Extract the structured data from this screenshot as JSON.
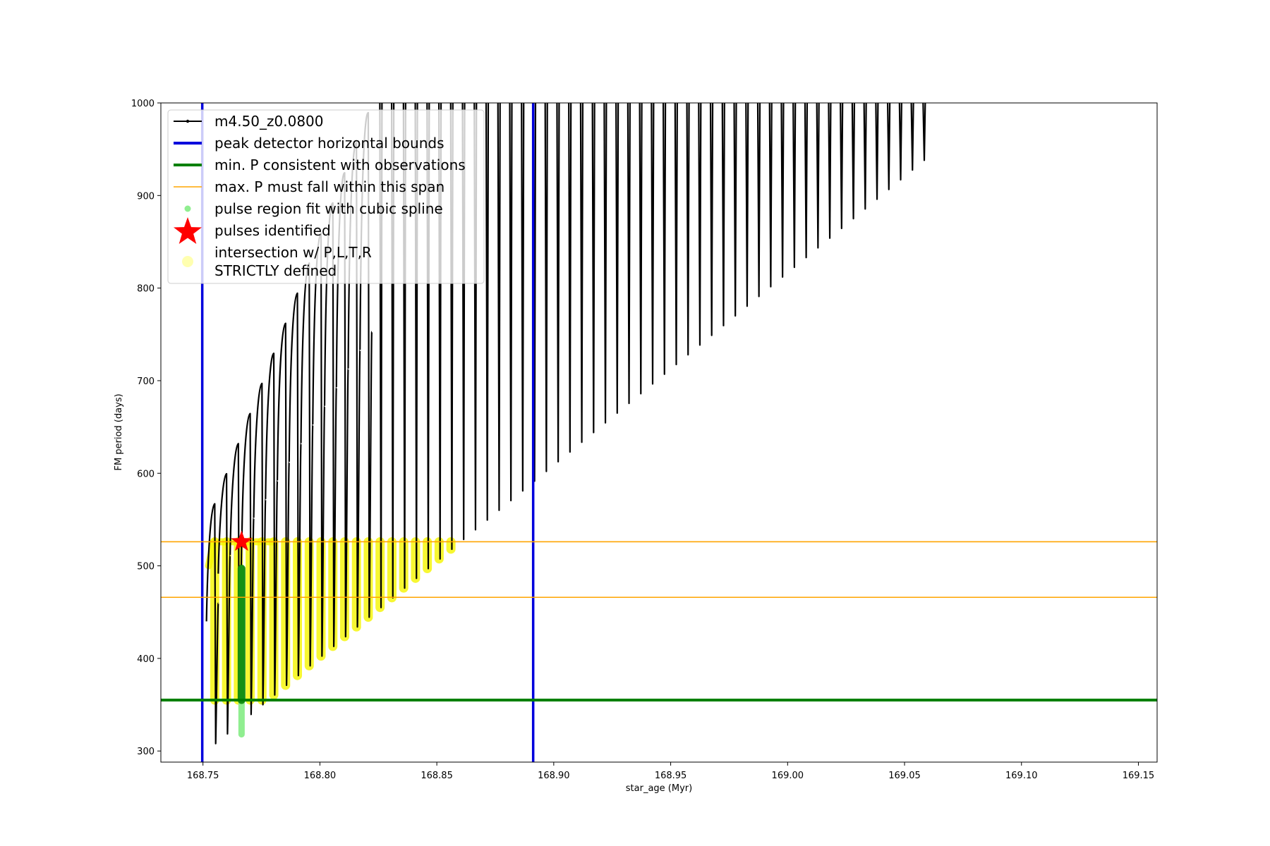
{
  "chart_data": {
    "type": "line",
    "title": "",
    "xlabel": "star_age (Myr)",
    "ylabel": "FM period (days)",
    "xlim": [
      168.732,
      169.158
    ],
    "ylim": [
      288,
      1000
    ],
    "x_ticks": [
      168.75,
      168.8,
      168.85,
      168.9,
      168.95,
      169.0,
      169.05,
      169.1,
      169.15
    ],
    "x_tick_labels": [
      "168.75",
      "168.80",
      "168.85",
      "168.90",
      "168.95",
      "169.00",
      "169.05",
      "169.10",
      "169.15"
    ],
    "y_ticks": [
      300,
      400,
      500,
      600,
      700,
      800,
      900,
      1000
    ],
    "y_tick_labels": [
      "300",
      "400",
      "500",
      "600",
      "700",
      "800",
      "900",
      "1000"
    ],
    "grid": false,
    "legend_position": "top-left",
    "track": {
      "name": "m4.50_z0.0800",
      "color": "#000000",
      "first_pulse_x": 168.7515,
      "pulse_spacing": 0.00505,
      "pulse_count": 61,
      "first_peak": 567,
      "peak_step": 32.5,
      "first_minimum": 308,
      "minimum_step": 10.5,
      "max_period": 1000
    },
    "reference_lines": {
      "peak_detector_bounds": {
        "name": "peak detector horizontal bounds",
        "color": "#0000dd",
        "x": [
          168.7497,
          168.8912
        ]
      },
      "min_period": {
        "name": "min. P consistent with observations",
        "color": "#008000",
        "y": 355
      },
      "max_period_span": {
        "name": "max. P must fall within this span",
        "color": "#ffa500",
        "y": [
          466,
          526
        ]
      }
    },
    "spline_region": {
      "name": "pulse region fit with cubic spline",
      "color": "#90ee90",
      "x": 168.7665,
      "y_range": [
        318,
        497
      ]
    },
    "pulses_identified": {
      "name": "pulses identified",
      "color": "#ff0000",
      "points": [
        {
          "x": 168.7665,
          "y": 526
        }
      ]
    },
    "intersection_region": {
      "name": "intersection w/ P,L,T,R STRICTLY defined",
      "color": "#ffff00",
      "y_range": [
        355,
        526
      ]
    },
    "legend": [
      {
        "label": "m4.50_z0.0800",
        "style": "line-dot",
        "color": "#000000"
      },
      {
        "label": "peak detector horizontal bounds",
        "style": "line",
        "color": "#0000dd"
      },
      {
        "label": "min. P consistent with observations",
        "style": "line",
        "color": "#008000"
      },
      {
        "label": "max. P must fall within this span",
        "style": "thin-line",
        "color": "#ffa500"
      },
      {
        "label": "pulse region fit with cubic spline",
        "style": "dot",
        "color": "#90ee90"
      },
      {
        "label": "pulses identified",
        "style": "star",
        "color": "#ff0000"
      },
      {
        "label": "intersection w/ P,L,T,R",
        "label2": "STRICTLY defined",
        "style": "big-dot",
        "color": "#ffffb0"
      }
    ]
  }
}
